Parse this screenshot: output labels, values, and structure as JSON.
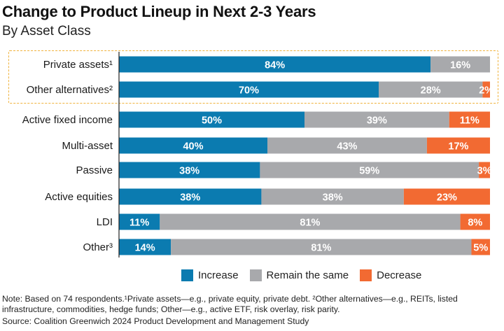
{
  "chart_data": {
    "type": "bar",
    "orientation": "horizontal",
    "stacked": true,
    "title": "Change to Product Lineup in Next 2-3 Years",
    "subtitle": "By Asset Class",
    "categories": [
      "Private assets¹",
      "Other alternatives²",
      "Active fixed income",
      "Multi-asset",
      "Passive",
      "Active equities",
      "LDI",
      "Other³"
    ],
    "series": [
      {
        "name": "Increase",
        "color": "#0b7bb0",
        "values": [
          84,
          70,
          50,
          40,
          38,
          38,
          11,
          14
        ],
        "labels": [
          "84%",
          "70%",
          "50%",
          "40%",
          "38%",
          "38%",
          "11%",
          "14%"
        ]
      },
      {
        "name": "Remain the same",
        "color": "#a8a9ac",
        "values": [
          16,
          28,
          39,
          43,
          59,
          38,
          81,
          81
        ],
        "labels": [
          "16%",
          "28%",
          "39%",
          "43%",
          "59%",
          "38%",
          "81%",
          "81%"
        ]
      },
      {
        "name": "Decrease",
        "color": "#f26a32",
        "values": [
          0,
          2,
          11,
          17,
          3,
          23,
          8,
          5
        ],
        "labels": [
          "",
          "2%",
          "11%",
          "17%",
          "3%",
          "23%",
          "8%",
          "5%"
        ]
      }
    ],
    "highlight": "dashed box around first two categories",
    "legend_position": "bottom"
  },
  "footer": {
    "note": "Note: Based on 74 respondents.¹Private assets—e.g., private equity, private debt. ²Other alternatives—e.g., REITs, listed infrastructure, commodities, hedge funds; Other—e.g., active ETF, risk overlay, risk parity.",
    "source": "Source: Coalition Greenwich 2024 Product Development and Management Study"
  },
  "colors": {
    "increase": "#0b7bb0",
    "same": "#a8a9ac",
    "decrease": "#f26a32",
    "highlight": "#f0b23c"
  }
}
